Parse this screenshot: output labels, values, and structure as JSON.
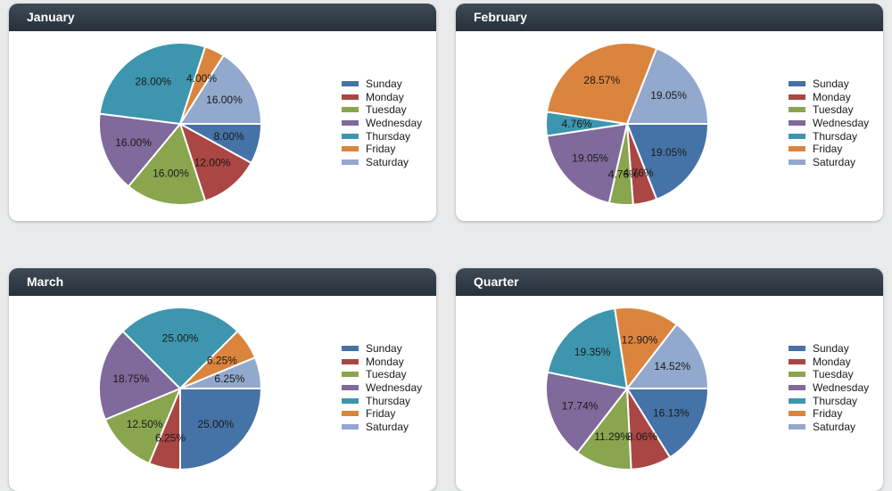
{
  "colors": {
    "Sunday": "#4572a7",
    "Monday": "#aa4643",
    "Tuesday": "#89a54e",
    "Wednesday": "#80699b",
    "Thursday": "#3d96ae",
    "Friday": "#db843d",
    "Saturday": "#92a8cd"
  },
  "chart_data": [
    {
      "type": "pie",
      "title": "January",
      "legend_position": "right",
      "categories": [
        "Sunday",
        "Monday",
        "Tuesday",
        "Wednesday",
        "Thursday",
        "Friday",
        "Saturday"
      ],
      "values": [
        8.0,
        12.0,
        16.0,
        16.0,
        28.0,
        4.0,
        16.0
      ],
      "labels": [
        "8.00%",
        "12.00%",
        "16.00%",
        "16.00%",
        "28.00%",
        "4.00%",
        "16.00%"
      ]
    },
    {
      "type": "pie",
      "title": "February",
      "legend_position": "right",
      "categories": [
        "Sunday",
        "Monday",
        "Tuesday",
        "Wednesday",
        "Thursday",
        "Friday",
        "Saturday"
      ],
      "values": [
        19.05,
        4.76,
        4.76,
        19.05,
        4.76,
        28.57,
        19.05
      ],
      "labels": [
        "19.05%",
        "4.76%",
        "4.76%",
        "19.05%",
        "4.76%",
        "28.57%",
        "19.05%"
      ]
    },
    {
      "type": "pie",
      "title": "March",
      "legend_position": "right",
      "categories": [
        "Sunday",
        "Monday",
        "Tuesday",
        "Wednesday",
        "Thursday",
        "Friday",
        "Saturday"
      ],
      "values": [
        25.0,
        6.25,
        12.5,
        18.75,
        25.0,
        6.25,
        6.25
      ],
      "labels": [
        "25.00%",
        "6.25%",
        "12.50%",
        "18.75%",
        "25.00%",
        "6.25%",
        "6.25%"
      ]
    },
    {
      "type": "pie",
      "title": "Quarter",
      "legend_position": "right",
      "categories": [
        "Sunday",
        "Monday",
        "Tuesday",
        "Wednesday",
        "Thursday",
        "Friday",
        "Saturday"
      ],
      "values": [
        16.13,
        8.06,
        11.29,
        17.74,
        19.35,
        12.9,
        14.52
      ],
      "labels": [
        "16.13%",
        "8.06%",
        "11.29%",
        "17.74%",
        "19.35%",
        "12.90%",
        "14.52%"
      ]
    }
  ]
}
